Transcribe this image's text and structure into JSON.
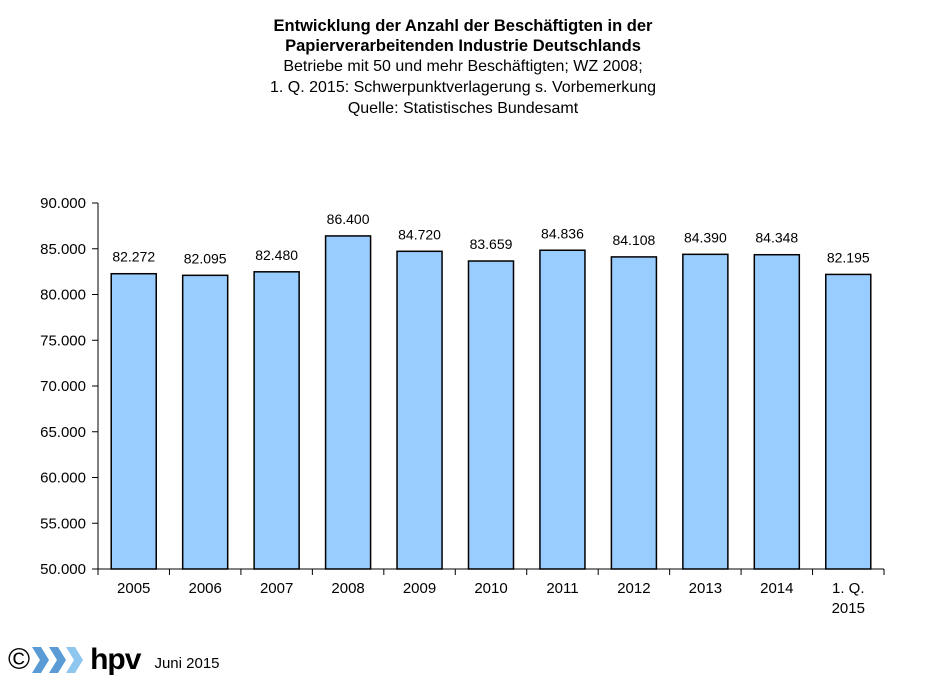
{
  "chart_data": {
    "type": "bar",
    "title": "Entwicklung der Anzahl der Beschäftigten in der Papierverarbeitenden Industrie Deutschlands",
    "title_lines": [
      "Entwicklung der Anzahl der Beschäftigten in der",
      "Papierverarbeitenden Industrie Deutschlands"
    ],
    "subtitle_lines": [
      "Betriebe mit 50 und mehr Beschäftigten; WZ 2008;",
      "1. Q. 2015: Schwerpunktverlagerung s. Vorbemerkung",
      "Quelle: Statistisches Bundesamt"
    ],
    "xlabel": "",
    "ylabel": "",
    "categories": [
      "2005",
      "2006",
      "2007",
      "2008",
      "2009",
      "2010",
      "2011",
      "2012",
      "2013",
      "2014",
      "1. Q. 2015"
    ],
    "category_label_lines": [
      [
        "2005"
      ],
      [
        "2006"
      ],
      [
        "2007"
      ],
      [
        "2008"
      ],
      [
        "2009"
      ],
      [
        "2010"
      ],
      [
        "2011"
      ],
      [
        "2012"
      ],
      [
        "2013"
      ],
      [
        "2014"
      ],
      [
        "1. Q.",
        "2015"
      ]
    ],
    "values": [
      82272,
      82095,
      82480,
      86400,
      84720,
      83659,
      84836,
      84108,
      84390,
      84348,
      82195
    ],
    "value_labels": [
      "82.272",
      "82.095",
      "82.480",
      "86.400",
      "84.720",
      "83.659",
      "84.836",
      "84.108",
      "84.390",
      "84.348",
      "82.195"
    ],
    "ylim": [
      50000,
      90000
    ],
    "yticks": [
      50000,
      55000,
      60000,
      65000,
      70000,
      75000,
      80000,
      85000,
      90000
    ],
    "ytick_labels": [
      "50.000",
      "55.000",
      "60.000",
      "65.000",
      "70.000",
      "75.000",
      "80.000",
      "85.000",
      "90.000"
    ],
    "grid": false,
    "legend": "none",
    "bar_color": "#99ccff",
    "bar_edge_color": "#000000"
  },
  "footer": {
    "copyright_symbol": "©",
    "logo_text": "hpv",
    "date": "Juni 2015",
    "logo_colors": [
      "#5b9bd5",
      "#8fc6ef"
    ]
  }
}
